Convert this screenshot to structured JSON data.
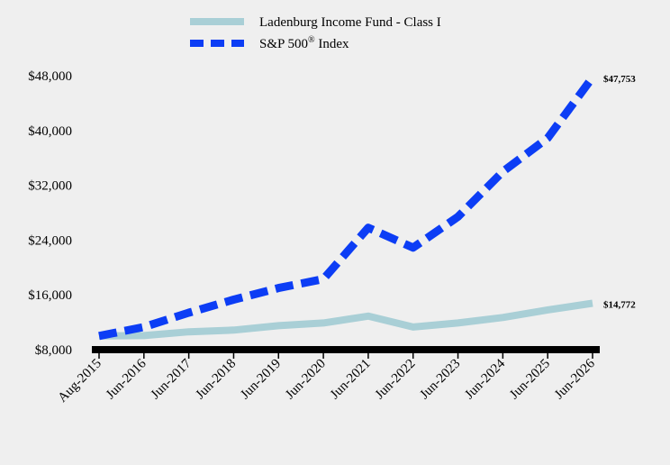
{
  "chart_data": {
    "type": "line",
    "title": "",
    "xlabel": "",
    "ylabel": "",
    "categories": [
      "Aug-2015",
      "Jun-2016",
      "Jun-2017",
      "Jun-2018",
      "Jun-2019",
      "Jun-2020",
      "Jun-2021",
      "Jun-2022",
      "Jun-2023",
      "Jun-2024",
      "Jun-2025",
      "Jun-2026"
    ],
    "y_ticks": [
      8000,
      16000,
      24000,
      32000,
      40000,
      48000
    ],
    "y_tick_labels": [
      "$8,000",
      "$16,000",
      "$24,000",
      "$32,000",
      "$40,000",
      "$48,000"
    ],
    "ylim": [
      8000,
      48000
    ],
    "grid": false,
    "legend_position": "top-center",
    "series": [
      {
        "name": "Ladenburg Income Fund - Class I",
        "color": "#a9cfd6",
        "style": "solid",
        "values": [
          10000,
          10050,
          10600,
          10850,
          11500,
          11900,
          12900,
          11300,
          11900,
          12700,
          13800,
          14772
        ],
        "end_label": "$14,772"
      },
      {
        "name": "S&P 500",
        "name_sup": "®",
        "name_suffix": " Index",
        "color": "#0c3df5",
        "style": "dashed",
        "values": [
          10000,
          11300,
          13400,
          15300,
          17000,
          18300,
          25800,
          22900,
          27400,
          34000,
          38900,
          47753
        ],
        "end_label": "$47,753"
      }
    ]
  }
}
